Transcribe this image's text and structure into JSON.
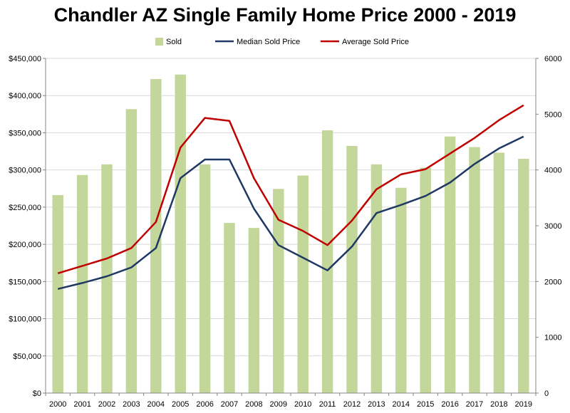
{
  "chart_data": {
    "type": "bar+line",
    "title": "Chandler AZ Single Family Home Price 2000 - 2019",
    "categories": [
      "2000",
      "2001",
      "2002",
      "2003",
      "2004",
      "2005",
      "2006",
      "2007",
      "2008",
      "2009",
      "2010",
      "2011",
      "2012",
      "2013",
      "2014",
      "2015",
      "2016",
      "2017",
      "2018",
      "2019"
    ],
    "series": [
      {
        "name": "Sold",
        "kind": "bar",
        "axis": "right",
        "values": [
          3550,
          3910,
          4100,
          5090,
          5630,
          5710,
          4100,
          3050,
          2960,
          3660,
          3900,
          4710,
          4430,
          4100,
          3680,
          4040,
          4600,
          4410,
          4310,
          4200
        ]
      },
      {
        "name": "Median Sold Price",
        "kind": "line",
        "axis": "left",
        "values": [
          140000,
          148000,
          157000,
          169000,
          195000,
          289000,
          314000,
          314000,
          248000,
          199000,
          182000,
          165000,
          197000,
          242000,
          253000,
          265000,
          283000,
          308000,
          329000,
          345000
        ]
      },
      {
        "name": "Average Sold Price",
        "kind": "line",
        "axis": "left",
        "values": [
          161000,
          171000,
          181000,
          195000,
          230000,
          330000,
          370000,
          366000,
          289000,
          233000,
          218000,
          199000,
          232000,
          274000,
          294000,
          301000,
          322000,
          343000,
          367000,
          387000
        ]
      }
    ],
    "left_axis": {
      "ylim": [
        0,
        450000
      ],
      "ticks": [
        "$0",
        "$50,000",
        "$100,000",
        "$150,000",
        "$200,000",
        "$250,000",
        "$300,000",
        "$350,000",
        "$400,000",
        "$450,000"
      ]
    },
    "right_axis": {
      "ylim": [
        0,
        6000
      ],
      "ticks": [
        "0",
        "1000",
        "2000",
        "3000",
        "4000",
        "5000",
        "6000"
      ]
    },
    "legend_position": "top",
    "grid": true,
    "colors": {
      "Sold": "#c4d79b",
      "Median Sold Price": "#1f3864",
      "Average Sold Price": "#c00000",
      "grid": "#d9d9d9",
      "axis": "#868686"
    }
  }
}
